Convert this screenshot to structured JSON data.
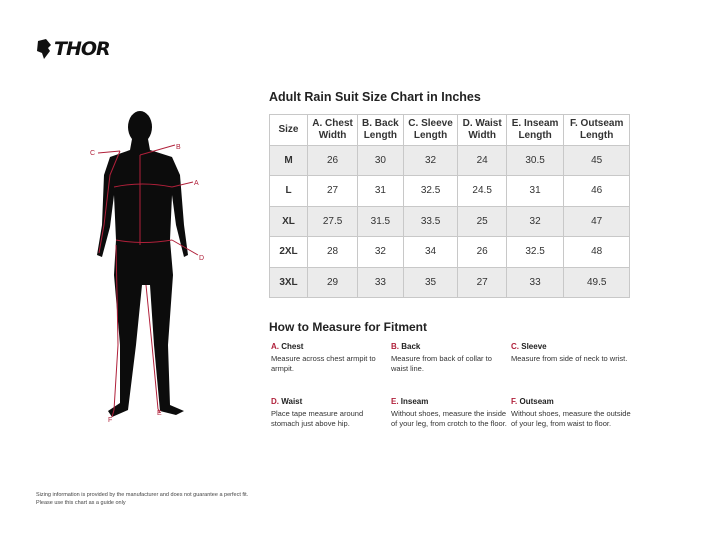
{
  "brand": "THOR",
  "title": "Adult Rain Suit Size Chart in Inches",
  "figure_labels": {
    "a": "A",
    "b": "B",
    "c": "C",
    "d": "D",
    "e": "E",
    "f": "F"
  },
  "table": {
    "headers": [
      "Size",
      [
        "A. Chest",
        "Width"
      ],
      [
        "B. Back",
        "Length"
      ],
      [
        "C. Sleeve",
        "Length"
      ],
      [
        "D. Waist",
        "Width"
      ],
      [
        "E. Inseam",
        "Length"
      ],
      [
        "F. Outseam",
        "Length"
      ]
    ],
    "rows": [
      [
        "M",
        "26",
        "30",
        "32",
        "24",
        "30.5",
        "45"
      ],
      [
        "L",
        "27",
        "31",
        "32.5",
        "24.5",
        "31",
        "46"
      ],
      [
        "XL",
        "27.5",
        "31.5",
        "33.5",
        "25",
        "32",
        "47"
      ],
      [
        "2XL",
        "28",
        "32",
        "34",
        "26",
        "32.5",
        "48"
      ],
      [
        "3XL",
        "29",
        "33",
        "35",
        "27",
        "33",
        "49.5"
      ]
    ]
  },
  "howto": {
    "title": "How to Measure for Fitment",
    "items": [
      {
        "letter": "A.",
        "name": "Chest",
        "text": "Measure across chest armpit to armpit."
      },
      {
        "letter": "B.",
        "name": "Back",
        "text": "Measure from back of collar to waist line."
      },
      {
        "letter": "C.",
        "name": "Sleeve",
        "text": "Measure from side of neck to wrist."
      },
      {
        "letter": "D.",
        "name": "Waist",
        "text": "Place tape measure around stomach just above hip."
      },
      {
        "letter": "E.",
        "name": "Inseam",
        "text": "Without shoes, measure the inside of your leg, from crotch to the floor."
      },
      {
        "letter": "F.",
        "name": "Outseam",
        "text": "Without shoes, measure the outside of your leg, from waist to floor."
      }
    ]
  },
  "disclaimer": [
    "Sizing information is provided by the manufacturer and does not guarantee a perfect fit.",
    "Please use this chart as a guide only"
  ],
  "colors": {
    "accent": "#b0203a",
    "row_shade": "#ebebeb",
    "border": "#c8c8c8"
  }
}
